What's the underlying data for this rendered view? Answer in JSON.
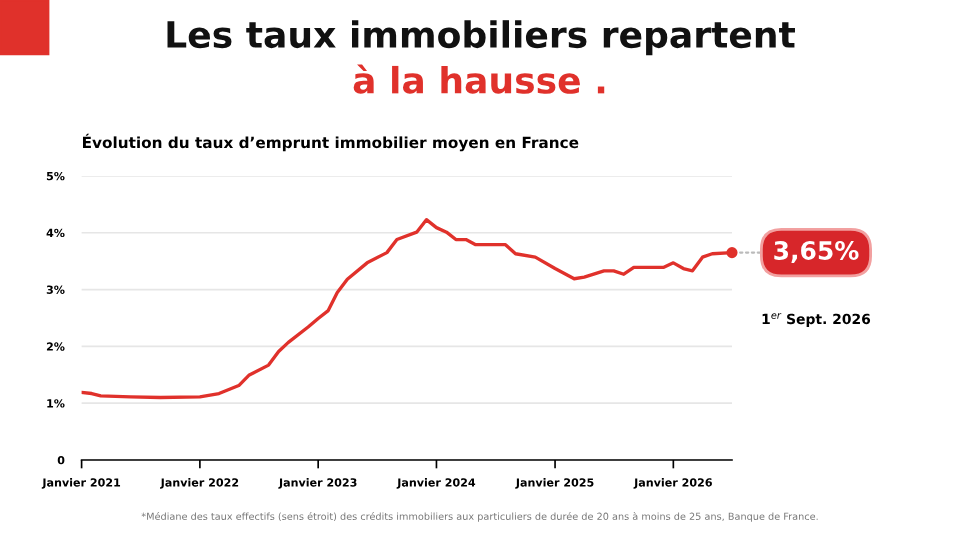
{
  "chart_data": {
    "type": "line",
    "title": "Les taux immobiliers repartent\nà la hausse .",
    "subtitle": "Évolution du taux d’emprunt immobilier moyen en France",
    "x": [
      "2021-01",
      "2021-02",
      "2021-03",
      "2021-06",
      "2021-09",
      "2022-01",
      "2022-03",
      "2022-05",
      "2022-06",
      "2022-08",
      "2022-09",
      "2022-10",
      "2022-12",
      "2023-01",
      "2023-02",
      "2023-03",
      "2023-04",
      "2023-06",
      "2023-08",
      "2023-09",
      "2023-11",
      "2023-12",
      "2024-01",
      "2024-02",
      "2024-03",
      "2024-04",
      "2024-05",
      "2024-08",
      "2024-09",
      "2024-11",
      "2025-01",
      "2025-03",
      "2025-04",
      "2025-06",
      "2025-07",
      "2025-08",
      "2025-09",
      "2025-12",
      "2026-01",
      "2026-02",
      "2026-03",
      "2026-04",
      "2026-05",
      "2026-07"
    ],
    "series": [
      {
        "color": "#e0312b",
        "values": [
          1.19,
          1.17,
          1.13,
          1.11,
          1.1,
          1.11,
          1.17,
          1.31,
          1.49,
          1.67,
          1.91,
          2.07,
          2.34,
          2.49,
          2.63,
          2.95,
          3.18,
          3.47,
          3.65,
          3.88,
          4.01,
          4.23,
          4.09,
          4.01,
          3.88,
          3.88,
          3.79,
          3.79,
          3.63,
          3.57,
          3.37,
          3.19,
          3.22,
          3.33,
          3.33,
          3.27,
          3.39,
          3.39,
          3.47,
          3.37,
          3.33,
          3.57,
          3.63,
          3.65
        ]
      }
    ],
    "xlim": [
      "2021-01",
      "2026-07"
    ],
    "xticks": [
      {
        "value": "2021-01",
        "label": "Janvier 2021"
      },
      {
        "value": "2022-01",
        "label": "Janvier 2022"
      },
      {
        "value": "2023-01",
        "label": "Janvier 2023"
      },
      {
        "value": "2024-01",
        "label": "Janvier 2024"
      },
      {
        "value": "2025-01",
        "label": "Janvier 2025"
      },
      {
        "value": "2026-01",
        "label": "Janvier 2026"
      }
    ],
    "ylim": [
      0,
      5
    ],
    "yticks": [
      {
        "value": 0,
        "label": "0"
      },
      {
        "value": 1,
        "label": "1%"
      },
      {
        "value": 2,
        "label": "2%"
      },
      {
        "value": 3,
        "label": "3%"
      },
      {
        "value": 4,
        "label": "4%"
      },
      {
        "value": 5,
        "label": "5%"
      }
    ],
    "grid": "y",
    "legend": false,
    "marker": "none",
    "line_style": "solid",
    "annotations": [
      {
        "text": "3,65%",
        "x": "2026-07",
        "y": 3.65
      },
      "1$^{er}$ Sept. 2026",
      "*Médiane des taux effectifs (sens étroit) des crédits immobiliers aux particuliers de durée de 20 ans à moins de 25 ans, Banque de France."
    ]
  }
}
